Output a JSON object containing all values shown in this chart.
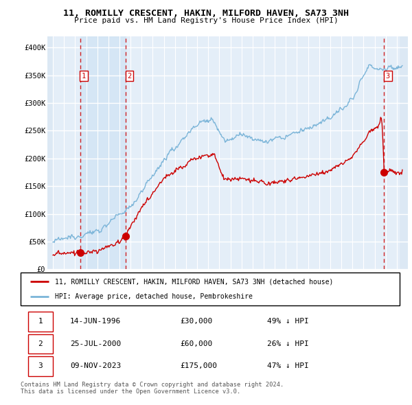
{
  "title": "11, ROMILLY CRESCENT, HAKIN, MILFORD HAVEN, SA73 3NH",
  "subtitle": "Price paid vs. HM Land Registry's House Price Index (HPI)",
  "legend_line1": "11, ROMILLY CRESCENT, HAKIN, MILFORD HAVEN, SA73 3NH (detached house)",
  "legend_line2": "HPI: Average price, detached house, Pembrokeshire",
  "footer": "Contains HM Land Registry data © Crown copyright and database right 2024.\nThis data is licensed under the Open Government Licence v3.0.",
  "transactions": [
    {
      "num": "1",
      "date": "14-JUN-1996",
      "price": "£30,000",
      "pct": "49% ↓ HPI",
      "year": 1996.45,
      "val": 30000
    },
    {
      "num": "2",
      "date": "25-JUL-2000",
      "price": "£60,000",
      "pct": "26% ↓ HPI",
      "year": 2000.56,
      "val": 60000
    },
    {
      "num": "3",
      "date": "09-NOV-2023",
      "price": "£175,000",
      "pct": "47% ↓ HPI",
      "year": 2023.85,
      "val": 175000
    }
  ],
  "hpi_color": "#7ab4d8",
  "price_color": "#cc0000",
  "vline_color": "#cc0000",
  "shade_color": "#dce8f5",
  "hatch_color": "#c8d4e4",
  "bg_color": "#e8f0f8",
  "ylim": [
    0,
    420000
  ],
  "xlim_start": 1993.5,
  "xlim_end": 2026.0,
  "hpi_start_year": 1994.0,
  "hpi_end_year": 2025.5,
  "n_points": 500
}
